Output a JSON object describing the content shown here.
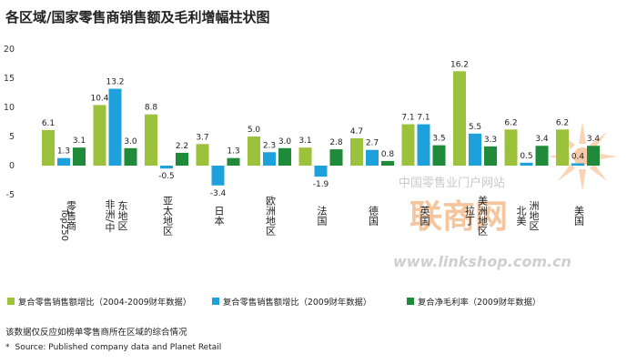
{
  "title": "各区域/国家零售商销售额及毛利增幅柱状图",
  "note": "该数据仅反应如榜单零售商所在区域的综合情况",
  "source": {
    "marker": "*",
    "text": "Source: Published company data and Planet Retail"
  },
  "watermark": {
    "line1": "中国零售业门户网站",
    "brand": "联商网",
    "url": "www.linkshop.com.cn"
  },
  "chart_data": {
    "type": "bar",
    "title": "各区域/国家零售商销售额及毛利增幅柱状图",
    "xlabel": "",
    "ylabel": "",
    "ylim": [
      -5,
      20
    ],
    "yticks": [
      -5,
      0,
      5,
      10,
      15,
      20
    ],
    "grid": false,
    "legend_position": "bottom",
    "categories": [
      "Top250 零售商",
      "非洲/中东地区",
      "亚太地区",
      "日本",
      "欧洲地区",
      "法国",
      "德国",
      "英国",
      "拉丁美洲地区",
      "北美洲地区",
      "美国"
    ],
    "series": [
      {
        "name": "复合零售销售额增比（2004-2009财年数据）",
        "color": "#9cc13b",
        "values": [
          6.1,
          10.4,
          8.8,
          3.7,
          5.0,
          3.1,
          4.7,
          7.1,
          16.2,
          6.2,
          6.2
        ]
      },
      {
        "name": "复合零售销售额增比（2009财年数据）",
        "color": "#1ea1db",
        "values": [
          1.3,
          13.2,
          -0.5,
          -3.4,
          2.3,
          -1.9,
          2.7,
          7.1,
          5.5,
          0.5,
          0.4
        ]
      },
      {
        "name": "复合净毛利率（2009财年数据）",
        "color": "#1e8a3a",
        "values": [
          3.1,
          3.0,
          2.2,
          1.3,
          3.0,
          2.8,
          0.8,
          3.5,
          3.3,
          3.4,
          3.4
        ]
      }
    ],
    "value_labels": [
      [
        "6.1",
        "10.4",
        "8.8",
        "3.7",
        "5.0",
        "3.1",
        "4.7",
        "7.1",
        "16.2",
        "6.2",
        "6.2"
      ],
      [
        "1.3",
        "13.2",
        "-0.5",
        "-3.4",
        "2.3",
        "-1.9",
        "2.7",
        "7.1",
        "5.5",
        "0.5",
        "0.4"
      ],
      [
        "3.1",
        "3.0",
        "2.2",
        "1.3",
        "3.0",
        "2.8",
        "0.8",
        "3.5",
        "3.3",
        "3.4",
        "3.4"
      ]
    ]
  }
}
